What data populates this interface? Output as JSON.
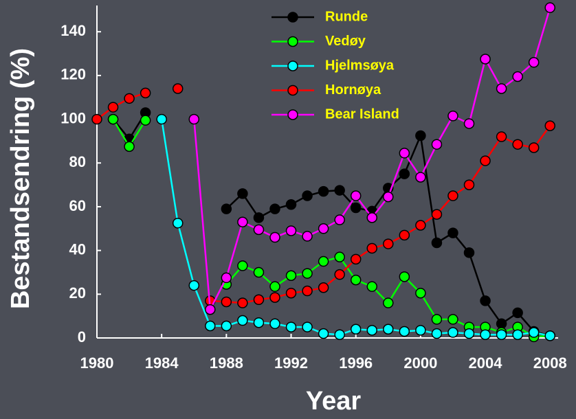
{
  "chart_data": {
    "type": "line",
    "xlabel": "Year",
    "ylabel": "Bestandsendring (%)",
    "x": [
      1980,
      1981,
      1982,
      1983,
      1984,
      1985,
      1986,
      1987,
      1988,
      1989,
      1990,
      1991,
      1992,
      1993,
      1994,
      1995,
      1996,
      1997,
      1998,
      1999,
      2000,
      2001,
      2002,
      2003,
      2004,
      2005,
      2006,
      2007,
      2008
    ],
    "series": [
      {
        "name": "Runde",
        "color": "#000000",
        "values": [
          null,
          100,
          91,
          103,
          null,
          null,
          null,
          null,
          59,
          66,
          55,
          59,
          61,
          65,
          67,
          67.5,
          59.5,
          58,
          68.5,
          75,
          92.5,
          43.5,
          48,
          39,
          17,
          6.5,
          11.5,
          3,
          1
        ]
      },
      {
        "name": "Vedøy",
        "color": "#00ff00",
        "values": [
          null,
          100,
          87.5,
          99.5,
          null,
          null,
          null,
          null,
          24.5,
          33,
          30,
          23.5,
          28.5,
          29.5,
          35,
          37,
          26.5,
          23.5,
          16,
          28,
          20.5,
          8.5,
          8.5,
          5,
          5,
          2.5,
          5,
          0.5,
          1
        ]
      },
      {
        "name": "Hjelmsøya",
        "color": "#00ffff",
        "values": [
          null,
          null,
          null,
          null,
          100,
          52.5,
          24,
          5.5,
          5.5,
          8,
          7,
          6.5,
          5,
          5,
          2,
          1.5,
          4,
          3.5,
          4,
          3,
          3.5,
          2,
          2.5,
          2,
          1.5,
          1.5,
          1.5,
          2.5,
          1
        ]
      },
      {
        "name": "Hornøya",
        "color": "#ff0000",
        "values": [
          100,
          105.5,
          109.5,
          112,
          null,
          114,
          null,
          17,
          16.5,
          16,
          17.5,
          18.5,
          20.5,
          21.5,
          23,
          29,
          36,
          41,
          43,
          47,
          51.5,
          56.5,
          65,
          70,
          81,
          92,
          88.5,
          87,
          97
        ]
      },
      {
        "name": "Bear Island",
        "color": "#ff00ff",
        "values": [
          null,
          null,
          null,
          null,
          null,
          null,
          100,
          13,
          27.5,
          53,
          49.5,
          46,
          49,
          46.5,
          50,
          54,
          65,
          55,
          64.5,
          84.5,
          73.5,
          88.5,
          101.5,
          98,
          127.5,
          114,
          119.5,
          126,
          151
        ]
      }
    ],
    "xlim": [
      1980,
      2008.5
    ],
    "xticks": [
      1980,
      1984,
      1988,
      1992,
      1996,
      2000,
      2004,
      2008
    ],
    "ylim": [
      0,
      152
    ],
    "yticks": [
      0,
      20,
      40,
      60,
      80,
      100,
      120,
      140
    ],
    "legend": "top"
  }
}
